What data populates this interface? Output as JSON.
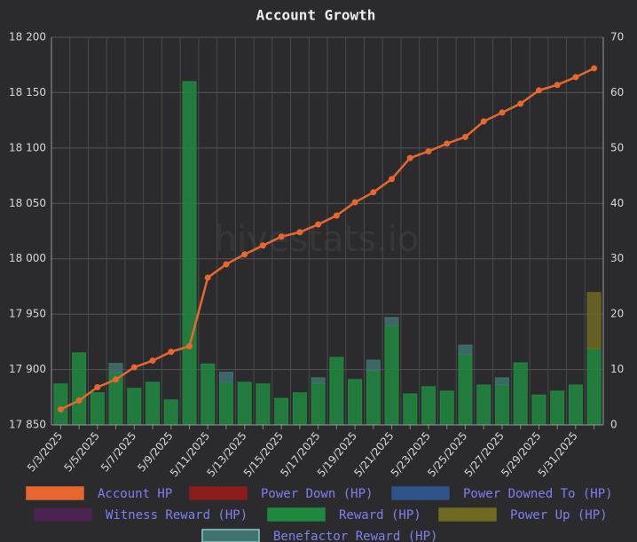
{
  "chart_data": {
    "type": "bar-line",
    "title": "Account Growth",
    "watermark": "hivestats.io",
    "categories": [
      "5/3/2025",
      null,
      "5/5/2025",
      null,
      "5/7/2025",
      null,
      "5/9/2025",
      null,
      "5/11/2025",
      null,
      "5/13/2025",
      null,
      "5/15/2025",
      null,
      "5/17/2025",
      null,
      "5/19/2025",
      null,
      "5/21/2025",
      null,
      "5/23/2025",
      null,
      "5/25/2025",
      null,
      "5/27/2025",
      null,
      "5/29/2025",
      null,
      "5/31/2025",
      null
    ],
    "ylim": [
      17850,
      18200
    ],
    "yticks": [
      {
        "value": 17850,
        "label": "17 850"
      },
      {
        "value": 17900,
        "label": "17 900"
      },
      {
        "value": 17950,
        "label": "17 950"
      },
      {
        "value": 18000,
        "label": "18 000"
      },
      {
        "value": 18050,
        "label": "18 050"
      },
      {
        "value": 18100,
        "label": "18 100"
      },
      {
        "value": 18150,
        "label": "18 150"
      },
      {
        "value": 18200,
        "label": "18 200"
      }
    ],
    "y2lim": [
      0,
      70
    ],
    "y2ticks": [
      0,
      10,
      20,
      30,
      40,
      50,
      60,
      70
    ],
    "grid": true,
    "series": [
      {
        "name": "Account HP",
        "kind": "line",
        "color": "#e8672e",
        "values": [
          17864,
          17872,
          17884,
          17891,
          17902,
          17908,
          17916,
          17921,
          17983,
          17995,
          18004,
          18012,
          18020,
          18024,
          18031,
          18039,
          18051,
          18060,
          18072,
          18091,
          18097,
          18104,
          18110,
          18124,
          18132,
          18140,
          18152,
          18157,
          18164,
          18172
        ]
      },
      {
        "name": "Power Down (HP)",
        "kind": "bar",
        "axis": "y2",
        "color": "#8b1c1c",
        "values": [
          null,
          null,
          null,
          null,
          null,
          null,
          null,
          null,
          null,
          null,
          null,
          null,
          null,
          null,
          null,
          null,
          null,
          null,
          null,
          null,
          null,
          null,
          null,
          null,
          null,
          null,
          null,
          null,
          null,
          null
        ]
      },
      {
        "name": "Power Downed To (HP)",
        "kind": "bar",
        "axis": "y2",
        "color": "#2f5288",
        "values": [
          null,
          null,
          null,
          null,
          null,
          null,
          null,
          null,
          null,
          null,
          null,
          null,
          null,
          null,
          null,
          null,
          null,
          null,
          null,
          null,
          null,
          null,
          null,
          null,
          null,
          null,
          null,
          null,
          null,
          null
        ]
      },
      {
        "name": "Witness Reward (HP)",
        "kind": "bar",
        "axis": "y2",
        "color": "#4b2350",
        "values": [
          null,
          null,
          null,
          null,
          null,
          null,
          null,
          null,
          null,
          null,
          null,
          null,
          null,
          null,
          null,
          null,
          null,
          null,
          null,
          null,
          null,
          null,
          null,
          null,
          null,
          null,
          null,
          null,
          null,
          null
        ]
      },
      {
        "name": "Reward (HP)",
        "kind": "bar",
        "axis": "y2",
        "color": "#1f8a3e",
        "values": [
          7.4,
          13,
          5.8,
          9.4,
          6.6,
          7.7,
          4.5,
          62,
          11,
          7.7,
          7.7,
          7.4,
          4.8,
          5.8,
          7.5,
          12.2,
          8.2,
          9.8,
          17.9,
          5.6,
          6.9,
          6.1,
          12.7,
          7.2,
          7.2,
          11.2,
          5.4,
          6.1,
          7.2,
          13.8
        ]
      },
      {
        "name": "Power Up (HP)",
        "kind": "bar",
        "axis": "y2",
        "color": "#6e6a22",
        "values": [
          null,
          null,
          null,
          null,
          null,
          null,
          null,
          null,
          null,
          null,
          null,
          null,
          null,
          null,
          null,
          null,
          null,
          null,
          null,
          null,
          null,
          null,
          null,
          null,
          null,
          null,
          null,
          null,
          null,
          10.1
        ]
      },
      {
        "name": "Benefactor Reward (HP)",
        "kind": "bar",
        "axis": "y2",
        "color": "#3e7370",
        "values": [
          null,
          null,
          null,
          1.7,
          null,
          null,
          null,
          null,
          null,
          1.8,
          null,
          null,
          null,
          null,
          1.0,
          null,
          null,
          1.9,
          1.5,
          null,
          null,
          null,
          1.7,
          null,
          1.3,
          null,
          null,
          null,
          null,
          null
        ]
      }
    ]
  }
}
